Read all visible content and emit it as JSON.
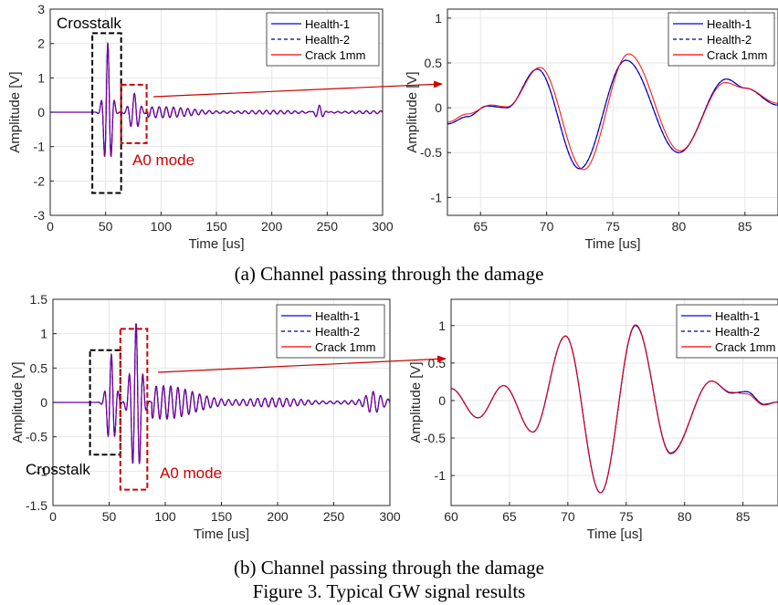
{
  "figure": {
    "row_a_caption": "(a) Channel passing through the damage",
    "row_b_caption": "(b) Channel passing through the damage",
    "figure_caption": "Figure 3. Typical GW signal results"
  },
  "legend": {
    "health1": "Health-1",
    "health2": "Health-2",
    "crack": "Crack 1mm"
  },
  "colors": {
    "health1": "#0000ff",
    "health2": "#00008b",
    "crack": "#ff0000",
    "overlay": "#8b008b",
    "box_black": "#000000",
    "box_red": "#cc0000",
    "annotation": "#cc0000",
    "grid": "#e6e6e6"
  },
  "annotations": {
    "crosstalk": "Crosstalk",
    "a0_mode": "A0 mode"
  },
  "chart_data": [
    {
      "id": "a-full",
      "type": "line",
      "xlabel": "Time [us]",
      "ylabel": "Amplitude [V]",
      "xlim": [
        0,
        300
      ],
      "ylim": [
        -3,
        3
      ],
      "xticks": [
        0,
        50,
        100,
        150,
        200,
        250,
        300
      ],
      "yticks": [
        -3,
        -2,
        -1,
        0,
        1,
        2,
        3
      ],
      "legend_position": "top-right",
      "series": [
        {
          "name": "Health-1"
        },
        {
          "name": "Health-2"
        },
        {
          "name": "Crack 1mm"
        }
      ],
      "crosstalk_box_x": [
        38,
        64
      ],
      "crosstalk_box_y": [
        -2.35,
        2.3
      ],
      "a0_box_x": [
        64,
        87
      ],
      "a0_box_y": [
        -0.9,
        0.8
      ],
      "waveform": {
        "main_burst": {
          "center": 52,
          "freq_MHz": 0.16,
          "width_us": 4.5,
          "peak": 2.0
        },
        "a0_packet": {
          "center": 76,
          "freq_MHz": 0.15,
          "width_us": 6,
          "peak": 0.55
        },
        "coda_peak": 0.18,
        "late_packet": {
          "center": 243,
          "freq_MHz": 0.15,
          "width_us": 5,
          "peak": 0.22
        }
      }
    },
    {
      "id": "a-zoom",
      "type": "line",
      "xlabel": "Time [us]",
      "ylabel": "Amplitude [V]",
      "xlim": [
        62.5,
        87.5
      ],
      "ylim": [
        -1.2,
        1.1
      ],
      "xticks": [
        65,
        70,
        75,
        80,
        85
      ],
      "yticks": [
        -1,
        -0.5,
        0,
        0.5,
        1
      ],
      "legend_position": "top-right",
      "keypoints": {
        "health": [
          [
            62.5,
            -0.18
          ],
          [
            64,
            -0.1
          ],
          [
            65.5,
            0.02
          ],
          [
            67,
            0.0
          ],
          [
            69.3,
            0.43
          ],
          [
            72.5,
            -0.68
          ],
          [
            76,
            0.53
          ],
          [
            80,
            -0.5
          ],
          [
            83.6,
            0.32
          ],
          [
            85,
            0.22
          ],
          [
            87.5,
            0.03
          ]
        ],
        "crack": [
          [
            62.5,
            -0.16
          ],
          [
            64,
            -0.07
          ],
          [
            65.8,
            0.03
          ],
          [
            67,
            0.01
          ],
          [
            69.5,
            0.45
          ],
          [
            72.8,
            -0.69
          ],
          [
            76.2,
            0.6
          ],
          [
            80.1,
            -0.48
          ],
          [
            83.5,
            0.28
          ],
          [
            85,
            0.22
          ],
          [
            87.5,
            0.05
          ]
        ]
      },
      "series": [
        {
          "name": "Health-1"
        },
        {
          "name": "Health-2"
        },
        {
          "name": "Crack 1mm"
        }
      ]
    },
    {
      "id": "b-full",
      "type": "line",
      "xlabel": "Time [us]",
      "ylabel": "Amplitude [V]",
      "xlim": [
        0,
        300
      ],
      "ylim": [
        -1.5,
        1.5
      ],
      "xticks": [
        0,
        50,
        100,
        150,
        200,
        250,
        300
      ],
      "yticks": [
        -1.5,
        -1,
        -0.5,
        0,
        0.5,
        1,
        1.5
      ],
      "legend_position": "top-right",
      "series": [
        {
          "name": "Health-1"
        },
        {
          "name": "Health-2"
        },
        {
          "name": "Crack 1mm"
        }
      ],
      "crosstalk_box_x": [
        33,
        60
      ],
      "crosstalk_box_y": [
        -0.76,
        0.76
      ],
      "a0_box_x": [
        60,
        84
      ],
      "a0_box_y": [
        -1.27,
        1.07
      ],
      "waveform": {
        "main_burst": {
          "center": 52,
          "freq_MHz": 0.16,
          "width_us": 5,
          "peak": 0.7
        },
        "a0_packet": {
          "center": 74,
          "freq_MHz": 0.16,
          "width_us": 6,
          "peak": 1.15
        },
        "coda_peak": 0.3,
        "late_packet": {
          "center": 285,
          "freq_MHz": 0.15,
          "width_us": 8,
          "peak": 0.12
        }
      }
    },
    {
      "id": "b-zoom",
      "type": "line",
      "xlabel": "Time [us]",
      "ylabel": "Amplitude [V]",
      "xlim": [
        60,
        88
      ],
      "ylim": [
        -1.4,
        1.35
      ],
      "xticks": [
        60,
        65,
        70,
        75,
        80,
        85
      ],
      "yticks": [
        -1,
        -0.5,
        0,
        0.5,
        1
      ],
      "legend_position": "top-right",
      "keypoints": {
        "health": [
          [
            60,
            0.16
          ],
          [
            62.3,
            -0.23
          ],
          [
            64.5,
            0.2
          ],
          [
            67,
            -0.42
          ],
          [
            69.8,
            0.86
          ],
          [
            72.8,
            -1.23
          ],
          [
            75.8,
            1.0
          ],
          [
            78.8,
            -0.7
          ],
          [
            82.3,
            0.26
          ],
          [
            84,
            0.1
          ],
          [
            85.3,
            0.12
          ],
          [
            86.8,
            -0.05
          ],
          [
            88,
            -0.02
          ]
        ],
        "crack": [
          [
            60,
            0.16
          ],
          [
            62.3,
            -0.23
          ],
          [
            64.5,
            0.2
          ],
          [
            67,
            -0.42
          ],
          [
            69.8,
            0.86
          ],
          [
            72.8,
            -1.23
          ],
          [
            75.8,
            1.01
          ],
          [
            78.8,
            -0.71
          ],
          [
            82.3,
            0.26
          ],
          [
            84,
            0.11
          ],
          [
            85.3,
            0.09
          ],
          [
            86.8,
            -0.06
          ],
          [
            88,
            -0.02
          ]
        ]
      },
      "series": [
        {
          "name": "Health-1"
        },
        {
          "name": "Health-2"
        },
        {
          "name": "Crack 1mm"
        }
      ]
    }
  ]
}
